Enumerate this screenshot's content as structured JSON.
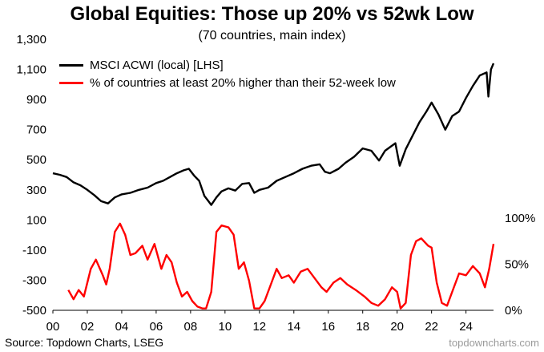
{
  "header": {
    "title": "Global Equities: Those up 20% vs 52wk Low",
    "subtitle": "(70 countries, main index)"
  },
  "footer": {
    "source": "Source: Topdown Charts, LSEG",
    "watermark": "topdowncharts.com"
  },
  "colors": {
    "acwi": "#000000",
    "pct": "#ff0000"
  },
  "chart_data": {
    "type": "line",
    "title": "Global Equities: Those up 20% vs 52wk Low",
    "subtitle": "(70 countries, main index)",
    "x_ticks": [
      "00",
      "02",
      "04",
      "06",
      "08",
      "10",
      "12",
      "14",
      "16",
      "18",
      "20",
      "22",
      "24"
    ],
    "x_tick_years": [
      2000,
      2002,
      2004,
      2006,
      2008,
      2010,
      2012,
      2014,
      2016,
      2018,
      2020,
      2022,
      2024
    ],
    "xlim": [
      2000,
      2025.6
    ],
    "y_left": {
      "ticks": [
        -500,
        -300,
        -100,
        100,
        300,
        500,
        700,
        900,
        1100,
        1300
      ],
      "tick_labels": [
        "-500",
        "-300",
        "-100",
        "100",
        "300",
        "500",
        "700",
        "900",
        "1,100",
        "1,300"
      ],
      "range": [
        -500,
        1300
      ]
    },
    "y_right": {
      "ticks": [
        0,
        50,
        100
      ],
      "tick_labels": [
        "0%",
        "50%",
        "100%"
      ],
      "range": [
        0,
        100
      ]
    },
    "grid": false,
    "legend_position": "top-left",
    "series": [
      {
        "name": "MSCI ACWI (local) [LHS]",
        "axis": "left",
        "color": "#000000",
        "points": [
          [
            2000.0,
            410
          ],
          [
            2000.4,
            400
          ],
          [
            2000.8,
            385
          ],
          [
            2001.2,
            350
          ],
          [
            2001.6,
            330
          ],
          [
            2002.0,
            300
          ],
          [
            2002.4,
            265
          ],
          [
            2002.8,
            225
          ],
          [
            2003.2,
            210
          ],
          [
            2003.6,
            250
          ],
          [
            2004.0,
            270
          ],
          [
            2004.5,
            280
          ],
          [
            2005.0,
            300
          ],
          [
            2005.5,
            315
          ],
          [
            2006.0,
            345
          ],
          [
            2006.4,
            360
          ],
          [
            2006.8,
            385
          ],
          [
            2007.2,
            410
          ],
          [
            2007.6,
            430
          ],
          [
            2007.9,
            440
          ],
          [
            2008.2,
            395
          ],
          [
            2008.5,
            360
          ],
          [
            2008.8,
            260
          ],
          [
            2009.0,
            230
          ],
          [
            2009.2,
            200
          ],
          [
            2009.5,
            250
          ],
          [
            2009.8,
            290
          ],
          [
            2010.2,
            310
          ],
          [
            2010.6,
            295
          ],
          [
            2011.0,
            340
          ],
          [
            2011.4,
            345
          ],
          [
            2011.7,
            280
          ],
          [
            2012.0,
            300
          ],
          [
            2012.5,
            315
          ],
          [
            2013.0,
            360
          ],
          [
            2013.5,
            385
          ],
          [
            2014.0,
            410
          ],
          [
            2014.5,
            440
          ],
          [
            2015.0,
            460
          ],
          [
            2015.5,
            470
          ],
          [
            2015.8,
            420
          ],
          [
            2016.1,
            410
          ],
          [
            2016.6,
            440
          ],
          [
            2017.0,
            480
          ],
          [
            2017.5,
            520
          ],
          [
            2018.0,
            575
          ],
          [
            2018.5,
            560
          ],
          [
            2018.95,
            495
          ],
          [
            2019.3,
            560
          ],
          [
            2019.9,
            610
          ],
          [
            2020.15,
            460
          ],
          [
            2020.5,
            570
          ],
          [
            2020.9,
            660
          ],
          [
            2021.3,
            750
          ],
          [
            2021.7,
            820
          ],
          [
            2022.0,
            880
          ],
          [
            2022.4,
            800
          ],
          [
            2022.8,
            700
          ],
          [
            2023.2,
            790
          ],
          [
            2023.6,
            820
          ],
          [
            2024.0,
            910
          ],
          [
            2024.4,
            990
          ],
          [
            2024.8,
            1060
          ],
          [
            2025.2,
            1080
          ],
          [
            2025.3,
            920
          ],
          [
            2025.45,
            1100
          ],
          [
            2025.6,
            1140
          ]
        ]
      },
      {
        "name": "% of countries at least 20% higher than their 52-week low",
        "axis": "right",
        "color": "#ff0000",
        "points": [
          [
            2000.9,
            22
          ],
          [
            2001.2,
            12
          ],
          [
            2001.5,
            22
          ],
          [
            2001.8,
            15
          ],
          [
            2002.2,
            45
          ],
          [
            2002.5,
            55
          ],
          [
            2002.9,
            38
          ],
          [
            2003.1,
            28
          ],
          [
            2003.3,
            45
          ],
          [
            2003.6,
            85
          ],
          [
            2003.9,
            94
          ],
          [
            2004.2,
            82
          ],
          [
            2004.5,
            60
          ],
          [
            2004.8,
            62
          ],
          [
            2005.2,
            70
          ],
          [
            2005.5,
            55
          ],
          [
            2005.9,
            72
          ],
          [
            2006.3,
            45
          ],
          [
            2006.6,
            60
          ],
          [
            2006.9,
            52
          ],
          [
            2007.2,
            30
          ],
          [
            2007.5,
            15
          ],
          [
            2007.8,
            20
          ],
          [
            2008.1,
            10
          ],
          [
            2008.4,
            4
          ],
          [
            2008.7,
            2
          ],
          [
            2008.9,
            2
          ],
          [
            2009.2,
            20
          ],
          [
            2009.5,
            85
          ],
          [
            2009.8,
            92
          ],
          [
            2010.2,
            90
          ],
          [
            2010.5,
            82
          ],
          [
            2010.8,
            45
          ],
          [
            2011.1,
            52
          ],
          [
            2011.4,
            32
          ],
          [
            2011.7,
            2
          ],
          [
            2012.0,
            2
          ],
          [
            2012.3,
            10
          ],
          [
            2012.7,
            30
          ],
          [
            2013.0,
            45
          ],
          [
            2013.3,
            35
          ],
          [
            2013.7,
            38
          ],
          [
            2014.0,
            30
          ],
          [
            2014.4,
            42
          ],
          [
            2014.8,
            45
          ],
          [
            2015.2,
            35
          ],
          [
            2015.6,
            25
          ],
          [
            2015.9,
            20
          ],
          [
            2016.3,
            30
          ],
          [
            2016.7,
            35
          ],
          [
            2017.1,
            28
          ],
          [
            2017.6,
            22
          ],
          [
            2018.1,
            15
          ],
          [
            2018.5,
            8
          ],
          [
            2018.9,
            5
          ],
          [
            2019.3,
            12
          ],
          [
            2019.7,
            25
          ],
          [
            2020.0,
            20
          ],
          [
            2020.2,
            2
          ],
          [
            2020.5,
            8
          ],
          [
            2020.8,
            60
          ],
          [
            2021.1,
            75
          ],
          [
            2021.4,
            78
          ],
          [
            2021.8,
            70
          ],
          [
            2022.0,
            68
          ],
          [
            2022.3,
            30
          ],
          [
            2022.6,
            8
          ],
          [
            2022.9,
            5
          ],
          [
            2023.2,
            20
          ],
          [
            2023.6,
            40
          ],
          [
            2024.0,
            38
          ],
          [
            2024.4,
            48
          ],
          [
            2024.8,
            40
          ],
          [
            2025.1,
            25
          ],
          [
            2025.35,
            45
          ],
          [
            2025.6,
            72
          ]
        ]
      }
    ]
  }
}
